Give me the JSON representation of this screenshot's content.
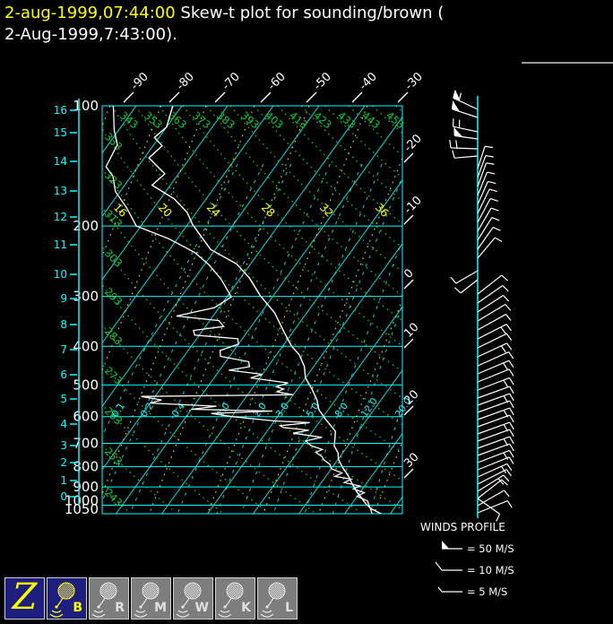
{
  "title": {
    "timestamp": "2-aug-1999,07:44:00",
    "line1_rest": " Skew-t plot for sounding/brown (",
    "line2": "2-Aug-1999,7:43:00)."
  },
  "colors": {
    "grid_cyan": "#00ffff",
    "adiabat_green": "#00cc33",
    "moist_yellow": "#ffff00",
    "trace_white": "#ffffff",
    "title_yellow": "#ffff00",
    "active_button_navy": "#1e1e7e",
    "button_gray": "#7d7d7d"
  },
  "axes": {
    "pressure_labels": [
      "100",
      "200",
      "300",
      "400",
      "500",
      "600",
      "700",
      "800",
      "900",
      "1000",
      "1050"
    ],
    "pressure_values": [
      100,
      200,
      300,
      400,
      500,
      600,
      700,
      800,
      900,
      1000,
      1050
    ],
    "height_km_labels": [
      "0",
      "1",
      "2",
      "3",
      "4",
      "5",
      "6",
      "7",
      "8",
      "9",
      "10",
      "11",
      "12",
      "13",
      "14",
      "15",
      "16"
    ],
    "top_temp_labels": [
      "-90",
      "-80",
      "-70",
      "-60",
      "-50",
      "-40",
      "-30"
    ],
    "top_temp_values": [
      -90,
      -80,
      -70,
      -60,
      -50,
      -40,
      -30
    ],
    "right_temp_labels": [
      "-20",
      "-10",
      "0",
      "10",
      "20",
      "30"
    ],
    "right_temp_values": [
      -20,
      -10,
      0,
      10,
      20,
      30
    ]
  },
  "chart_data": {
    "type": "skew-t-log-p sounding",
    "station": "sounding/brown",
    "time": "2-Aug-1999,7:43:00",
    "pressure_axis_hpa": [
      100,
      200,
      300,
      400,
      500,
      600,
      700,
      800,
      900,
      1000,
      1050
    ],
    "height_axis_km": [
      0,
      16
    ],
    "temperature_axis_c": [
      -90,
      30
    ],
    "dry_adiabats_theta_k": [
      243,
      253,
      263,
      273,
      283,
      293,
      303,
      313,
      323,
      333,
      343,
      353,
      363,
      373,
      383,
      393,
      403,
      413,
      423,
      433,
      443,
      453,
      463
    ],
    "dry_adiabat_left_labels": [
      "243",
      "253",
      "263",
      "273",
      "283",
      "293",
      "303",
      "313",
      "323",
      "333"
    ],
    "dry_adiabat_top_labels": [
      "343",
      "353",
      "363",
      "373",
      "383",
      "393",
      "403",
      "413",
      "423",
      "433",
      "443",
      "453"
    ],
    "moist_adiabat_labels": [
      "16",
      "20",
      "24",
      "28",
      "32",
      "36"
    ],
    "mixing_ratio_gkg": [
      0.1,
      0.2,
      0.4,
      1.0,
      2.0,
      3.0,
      5.0,
      8.0,
      12.0,
      20.0
    ],
    "mixing_ratio_labels": [
      "0.1",
      "0.2",
      "0.4",
      "1.0",
      "2.0",
      "3.0",
      "5.0",
      "8.0",
      "12.0",
      "20.0"
    ],
    "temperature_profile": [
      [
        100,
        -82
      ],
      [
        113,
        -80
      ],
      [
        120,
        -81
      ],
      [
        126,
        -78
      ],
      [
        135,
        -79
      ],
      [
        148,
        -73
      ],
      [
        158,
        -74
      ],
      [
        171,
        -67
      ],
      [
        185,
        -62
      ],
      [
        198,
        -59
      ],
      [
        213,
        -55
      ],
      [
        229,
        -51
      ],
      [
        249,
        -43
      ],
      [
        270,
        -38
      ],
      [
        298,
        -33
      ],
      [
        330,
        -27
      ],
      [
        368,
        -22
      ],
      [
        400,
        -18
      ],
      [
        420,
        -15
      ],
      [
        450,
        -12
      ],
      [
        480,
        -10
      ],
      [
        510,
        -7
      ],
      [
        545,
        -4
      ],
      [
        577,
        -2
      ],
      [
        610,
        1
      ],
      [
        653,
        5
      ],
      [
        680,
        6
      ],
      [
        710,
        7
      ],
      [
        740,
        9
      ],
      [
        766,
        10
      ],
      [
        800,
        12
      ],
      [
        847,
        15
      ],
      [
        885,
        17
      ],
      [
        922,
        19
      ],
      [
        955,
        21
      ],
      [
        990,
        23
      ],
      [
        1020,
        25
      ],
      [
        1050,
        28
      ]
    ],
    "dewpoint_profile": [
      [
        100,
        -95
      ],
      [
        115,
        -91
      ],
      [
        125,
        -88
      ],
      [
        142,
        -87
      ],
      [
        150,
        -84
      ],
      [
        164,
        -81
      ],
      [
        180,
        -76
      ],
      [
        200,
        -71
      ],
      [
        215,
        -62
      ],
      [
        233,
        -54
      ],
      [
        250,
        -49
      ],
      [
        272,
        -44
      ],
      [
        301,
        -39
      ],
      [
        320,
        -41
      ],
      [
        336,
        -48
      ],
      [
        345,
        -38
      ],
      [
        357,
        -36
      ],
      [
        365,
        -42
      ],
      [
        375,
        -41
      ],
      [
        383,
        -31
      ],
      [
        395,
        -30
      ],
      [
        410,
        -33
      ],
      [
        424,
        -32
      ],
      [
        437,
        -25
      ],
      [
        450,
        -24
      ],
      [
        459,
        -28
      ],
      [
        470,
        -20
      ],
      [
        480,
        -22
      ],
      [
        494,
        -13
      ],
      [
        505,
        -15
      ],
      [
        512,
        -13
      ],
      [
        520,
        -14
      ],
      [
        529,
        -10
      ],
      [
        534,
        -43
      ],
      [
        545,
        -38
      ],
      [
        555,
        -40
      ],
      [
        565,
        -25
      ],
      [
        575,
        -30
      ],
      [
        581,
        -12
      ],
      [
        589,
        -25
      ],
      [
        600,
        -20
      ],
      [
        615,
        -10
      ],
      [
        621,
        -2
      ],
      [
        632,
        -8
      ],
      [
        639,
        -7
      ],
      [
        649,
        -1
      ],
      [
        660,
        -4
      ],
      [
        676,
        3
      ],
      [
        690,
        0
      ],
      [
        710,
        2
      ],
      [
        725,
        5
      ],
      [
        737,
        4
      ],
      [
        755,
        6
      ],
      [
        770,
        7
      ],
      [
        790,
        9
      ],
      [
        810,
        10
      ],
      [
        830,
        13
      ],
      [
        847,
        12
      ],
      [
        860,
        16
      ],
      [
        877,
        15
      ],
      [
        895,
        19
      ],
      [
        910,
        18
      ],
      [
        930,
        21
      ],
      [
        950,
        20
      ],
      [
        975,
        23
      ],
      [
        1000,
        24
      ],
      [
        1023,
        25
      ],
      [
        1050,
        26
      ]
    ],
    "wind_barbs": [
      [
        122,
        155,
        30,
        2,
        1
      ],
      [
        131,
        162,
        30,
        1,
        1
      ],
      [
        147,
        168,
        28,
        2,
        0
      ],
      [
        155,
        172,
        26,
        1,
        1
      ],
      [
        166,
        178,
        30,
        2,
        0
      ],
      [
        174,
        185,
        26,
        1,
        0
      ],
      [
        188,
        72,
        26,
        1,
        0
      ],
      [
        198,
        70,
        26,
        1,
        0
      ],
      [
        208,
        70,
        28,
        1,
        0
      ],
      [
        218,
        68,
        28,
        1,
        0
      ],
      [
        228,
        66,
        28,
        1,
        0
      ],
      [
        238,
        64,
        30,
        1,
        0
      ],
      [
        248,
        62,
        30,
        1,
        0
      ],
      [
        258,
        60,
        30,
        1,
        0
      ],
      [
        268,
        58,
        30,
        1,
        0
      ],
      [
        278,
        55,
        30,
        1,
        0
      ],
      [
        288,
        50,
        30,
        1,
        0
      ],
      [
        302,
        210,
        28,
        1,
        0
      ],
      [
        312,
        218,
        24,
        1,
        0
      ],
      [
        328,
        38,
        34,
        1,
        0
      ],
      [
        338,
        35,
        34,
        1,
        0
      ],
      [
        348,
        33,
        34,
        1,
        0
      ],
      [
        358,
        31,
        36,
        1,
        0
      ],
      [
        368,
        29,
        36,
        1,
        0
      ],
      [
        378,
        27,
        36,
        2,
        0
      ],
      [
        388,
        26,
        36,
        1,
        0
      ],
      [
        398,
        25,
        36,
        2,
        0
      ],
      [
        408,
        24,
        38,
        1,
        0
      ],
      [
        417,
        23,
        38,
        2,
        0
      ],
      [
        426,
        22,
        38,
        1,
        0
      ],
      [
        435,
        21,
        38,
        2,
        0
      ],
      [
        444,
        20,
        38,
        1,
        0
      ],
      [
        452,
        20,
        38,
        2,
        0
      ],
      [
        460,
        20,
        38,
        1,
        0
      ],
      [
        468,
        20,
        38,
        2,
        0
      ],
      [
        476,
        20,
        38,
        1,
        0
      ],
      [
        484,
        20,
        38,
        2,
        0
      ],
      [
        492,
        20,
        38,
        1,
        0
      ],
      [
        500,
        20,
        38,
        2,
        0
      ],
      [
        508,
        20,
        38,
        1,
        0
      ],
      [
        516,
        21,
        38,
        2,
        0
      ],
      [
        524,
        22,
        38,
        1,
        0
      ],
      [
        532,
        24,
        36,
        2,
        0
      ],
      [
        540,
        27,
        36,
        1,
        0
      ],
      [
        548,
        32,
        34,
        2,
        0
      ],
      [
        556,
        -35,
        30,
        1,
        0
      ],
      [
        556,
        38,
        34,
        1,
        0
      ],
      [
        564,
        30,
        34,
        1,
        0
      ],
      [
        572,
        22,
        36,
        1,
        0
      ]
    ]
  },
  "winds_panel": {
    "title": "WINDS PROFILE",
    "legend": [
      {
        "symbol": "flag-barb",
        "label": "= 50 M/S"
      },
      {
        "symbol": "full-barb",
        "label": "= 10 M/S"
      },
      {
        "symbol": "half-barb",
        "label": "= 5 M/S"
      }
    ]
  },
  "toolbar": {
    "buttons": [
      {
        "label": "Z",
        "icon": "script-z",
        "active": true
      },
      {
        "label": "B",
        "icon": "balloon",
        "active": true
      },
      {
        "label": "R",
        "icon": "balloon",
        "active": false
      },
      {
        "label": "M",
        "icon": "balloon",
        "active": false
      },
      {
        "label": "W",
        "icon": "balloon",
        "active": false
      },
      {
        "label": "K",
        "icon": "balloon",
        "active": false
      },
      {
        "label": "L",
        "icon": "balloon",
        "active": false
      }
    ]
  }
}
